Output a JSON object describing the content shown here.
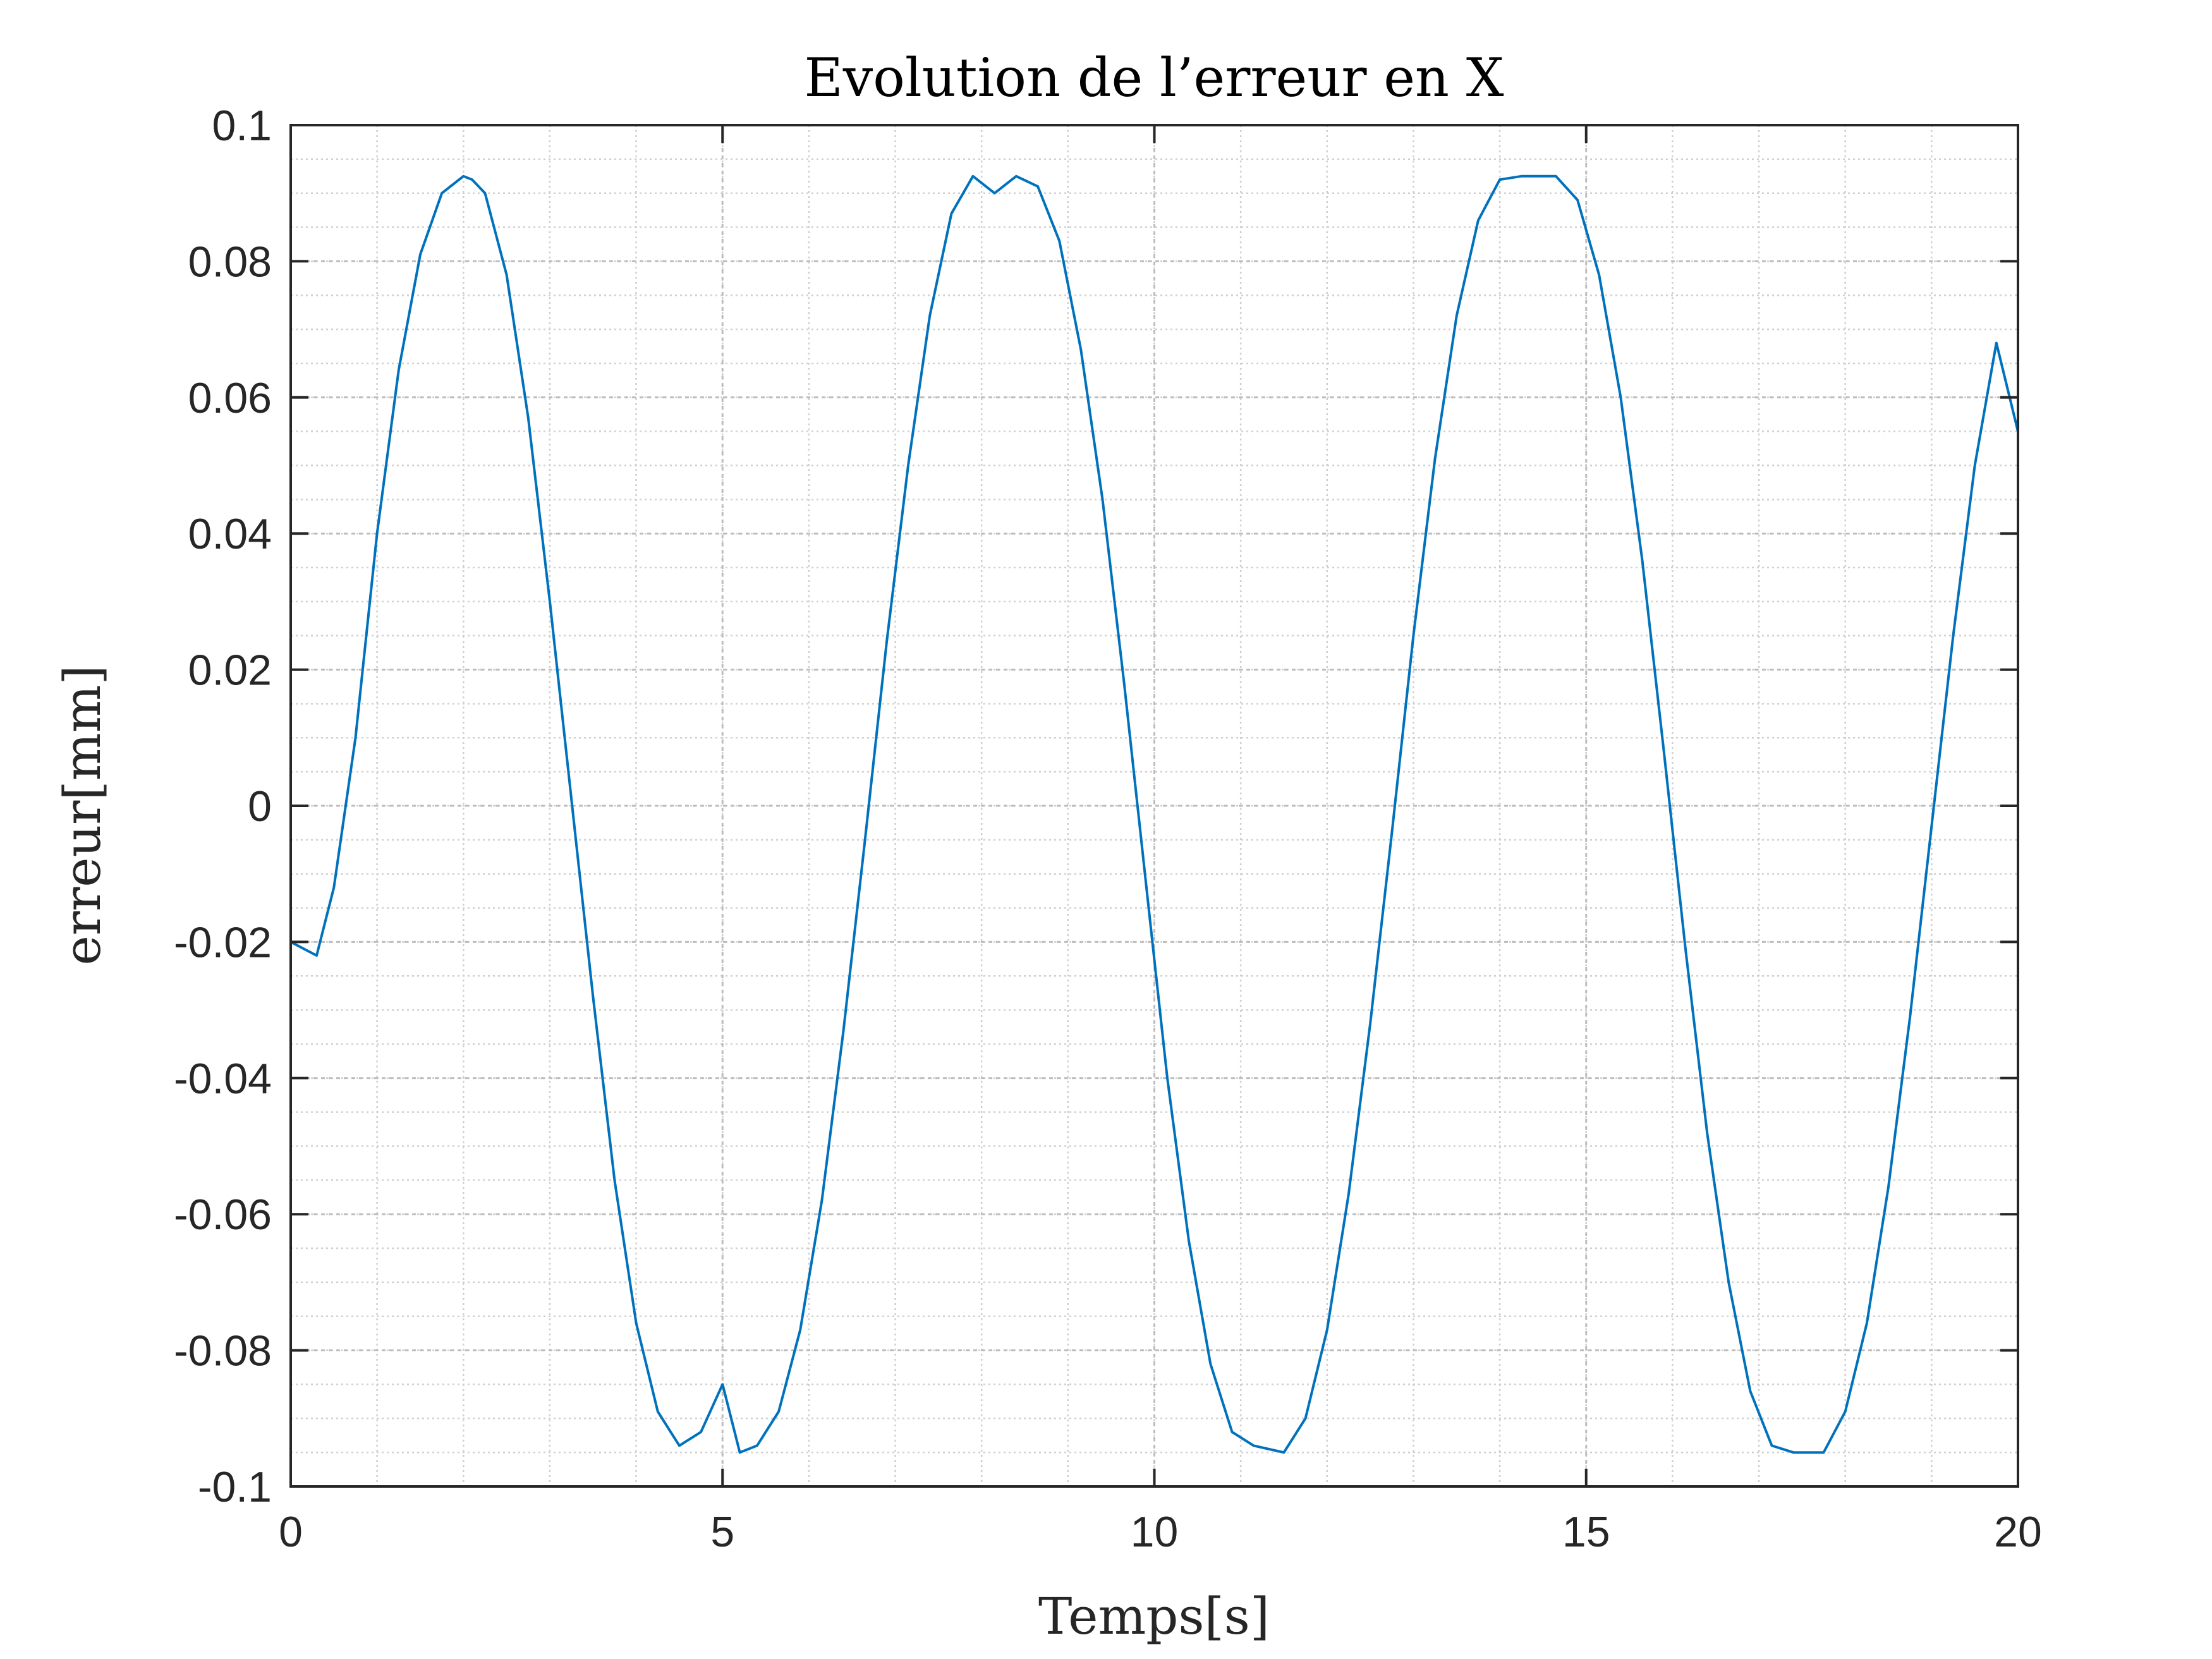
{
  "chart_data": {
    "type": "line",
    "title": "Evolution de l’erreur en X",
    "xlabel": "Temps[s]",
    "ylabel": "erreur[mm]",
    "xlim": [
      0,
      20
    ],
    "ylim": [
      -0.1,
      0.1
    ],
    "xticks": [
      0,
      5,
      10,
      15,
      20
    ],
    "xtick_labels": [
      "0",
      "5",
      "10",
      "15",
      "20"
    ],
    "yticks": [
      0.1,
      0.08,
      0.06,
      0.04,
      0.02,
      0,
      -0.02,
      -0.04,
      -0.06,
      -0.08,
      -0.1
    ],
    "ytick_labels": [
      "0.1",
      "0.08",
      "0.06",
      "0.04",
      "0.02",
      "0",
      "-0.02",
      "-0.04",
      "-0.06",
      "-0.08",
      "-0.1"
    ],
    "grid": true,
    "minor_grid": true,
    "legend": "none",
    "series": [
      {
        "color": "#0072BD",
        "x": [
          0,
          0.15,
          0.3,
          0.5,
          0.75,
          1.0,
          1.25,
          1.5,
          1.75,
          2.0,
          2.1,
          2.25,
          2.5,
          2.75,
          3.0,
          3.25,
          3.5,
          3.75,
          4.0,
          4.25,
          4.5,
          4.75,
          5.0,
          5.2,
          5.4,
          5.65,
          5.9,
          6.15,
          6.4,
          6.65,
          6.9,
          7.15,
          7.4,
          7.65,
          7.9,
          8.15,
          8.4,
          8.65,
          8.9,
          9.15,
          9.4,
          9.65,
          9.9,
          10.15,
          10.4,
          10.65,
          10.9,
          11.15,
          11.5,
          11.75,
          12.0,
          12.25,
          12.5,
          12.75,
          13.0,
          13.25,
          13.5,
          13.75,
          14.0,
          14.25,
          14.65,
          14.9,
          15.15,
          15.4,
          15.65,
          15.9,
          16.15,
          16.4,
          16.65,
          16.9,
          17.15,
          17.4,
          17.75,
          18.0,
          18.25,
          18.5,
          18.75,
          19.0,
          19.25,
          19.5,
          19.75,
          20.0
        ],
        "y": [
          -0.02,
          -0.021,
          -0.022,
          -0.012,
          0.01,
          0.04,
          0.064,
          0.081,
          0.09,
          0.0925,
          0.092,
          0.09,
          0.078,
          0.057,
          0.03,
          0.001,
          -0.028,
          -0.055,
          -0.076,
          -0.089,
          -0.094,
          -0.092,
          -0.085,
          -0.095,
          -0.094,
          -0.089,
          -0.077,
          -0.058,
          -0.033,
          -0.005,
          0.024,
          0.05,
          0.072,
          0.087,
          0.0925,
          0.09,
          0.0925,
          0.091,
          0.083,
          0.067,
          0.045,
          0.018,
          -0.011,
          -0.04,
          -0.064,
          -0.082,
          -0.092,
          -0.094,
          -0.095,
          -0.09,
          -0.077,
          -0.057,
          -0.032,
          -0.004,
          0.025,
          0.051,
          0.072,
          0.086,
          0.092,
          0.0925,
          0.0925,
          0.089,
          0.078,
          0.06,
          0.036,
          0.008,
          -0.021,
          -0.048,
          -0.07,
          -0.086,
          -0.094,
          -0.095,
          -0.095,
          -0.089,
          -0.076,
          -0.056,
          -0.031,
          -0.003,
          0.025,
          0.05,
          0.068,
          0.055
        ]
      }
    ]
  }
}
